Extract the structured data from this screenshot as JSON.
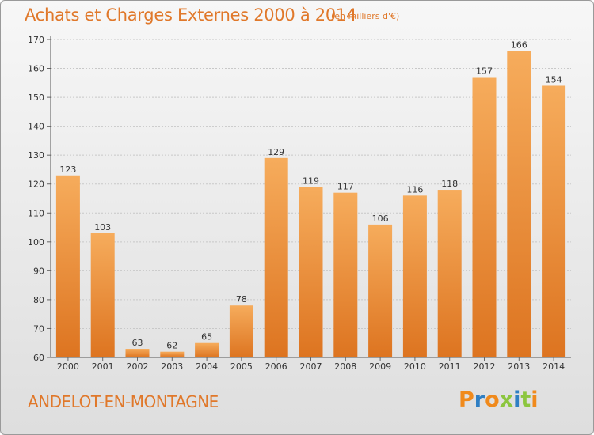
{
  "chart_data": {
    "type": "bar",
    "title": "Achats et Charges Externes 2000 à 2014",
    "subtitle": "(en milliers d'€)",
    "categories": [
      "2000",
      "2001",
      "2002",
      "2003",
      "2004",
      "2005",
      "2006",
      "2007",
      "2008",
      "2009",
      "2010",
      "2011",
      "2012",
      "2013",
      "2014"
    ],
    "values": [
      123,
      103,
      63,
      62,
      65,
      78,
      129,
      119,
      117,
      106,
      116,
      118,
      157,
      166,
      154
    ],
    "ylim": [
      60,
      170
    ],
    "yticks": [
      60,
      70,
      80,
      90,
      100,
      110,
      120,
      130,
      140,
      150,
      160,
      170
    ],
    "xlabel": "",
    "ylabel": "",
    "grid": true,
    "bar_color": "#e8883a",
    "bar_color_light": "#f6ac5c"
  },
  "location": "ANDELOT-EN-MONTAGNE",
  "logo": {
    "letters": [
      "P",
      "r",
      "o",
      "x",
      "i",
      "t",
      "i"
    ],
    "colors": [
      "#f08a1c",
      "#2f7fc4",
      "#f08a1c",
      "#8cc63f",
      "#2f7fc4",
      "#8cc63f",
      "#f08a1c"
    ]
  }
}
